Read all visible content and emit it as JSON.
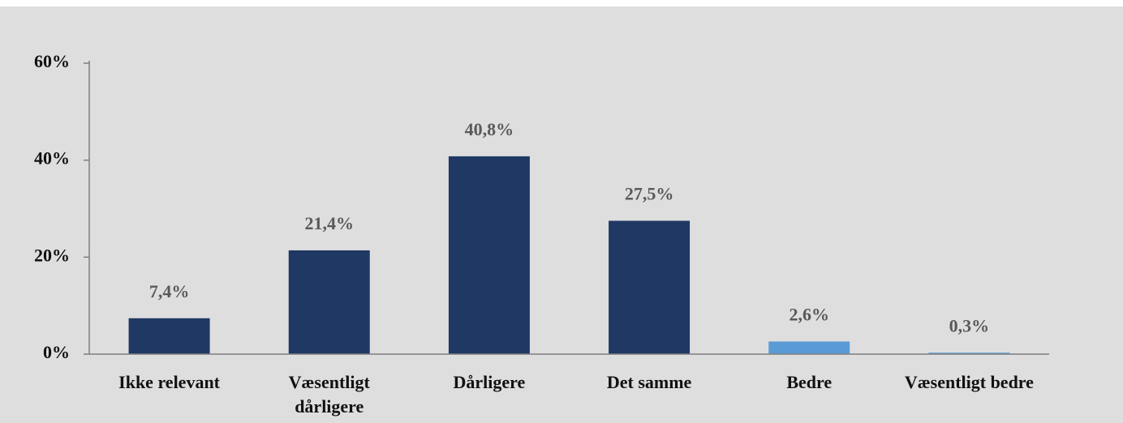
{
  "chart_data": {
    "type": "bar",
    "categories": [
      "Ikke relevant",
      "Væsentligt dårligere",
      "Dårligere",
      "Det samme",
      "Bedre",
      "Væsentligt bedre"
    ],
    "values": [
      7.4,
      21.4,
      40.8,
      27.5,
      2.6,
      0.3
    ],
    "value_labels": [
      "7,4%",
      "21,4%",
      "40,8%",
      "27,5%",
      "2,6%",
      "0,3%"
    ],
    "colors": [
      "#1f3864",
      "#1f3864",
      "#1f3864",
      "#1f3864",
      "#5b9bd5",
      "#5b9bd5"
    ],
    "ylim": [
      0,
      60
    ],
    "yticks": [
      {
        "value": 0,
        "label": "0%"
      },
      {
        "value": 20,
        "label": "20%"
      },
      {
        "value": 40,
        "label": "40%"
      },
      {
        "value": 60,
        "label": "60%"
      }
    ],
    "grid": false
  }
}
